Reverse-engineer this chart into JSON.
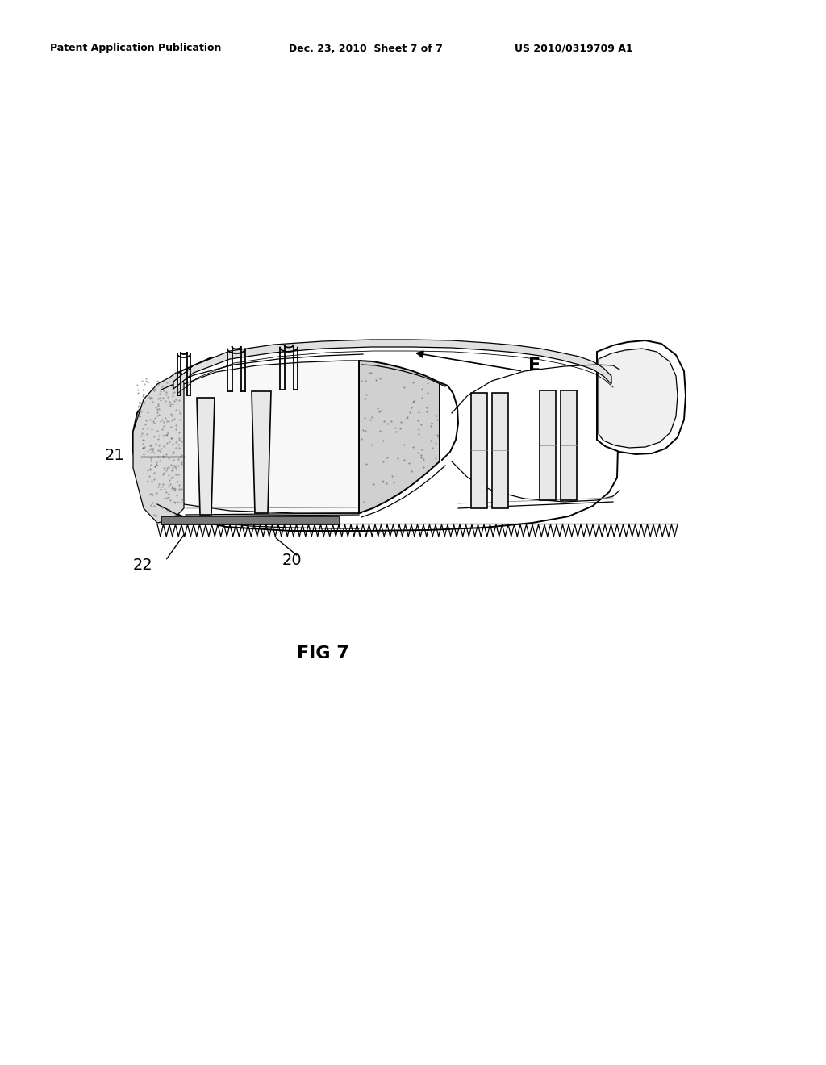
{
  "background_color": "#ffffff",
  "header_left": "Patent Application Publication",
  "header_center": "Dec. 23, 2010  Sheet 7 of 7",
  "header_right": "US 2010/0319709 A1",
  "figure_label": "FIG 7",
  "label_E": "E",
  "label_21": "21",
  "label_20": "20",
  "label_22": "22",
  "line_color": "#000000",
  "face_color": "#ffffff",
  "gray_light": "#e8e8e8",
  "gray_mid": "#c0c0c0",
  "gray_dark": "#888888",
  "stipple_gray": "#b0b0b0"
}
